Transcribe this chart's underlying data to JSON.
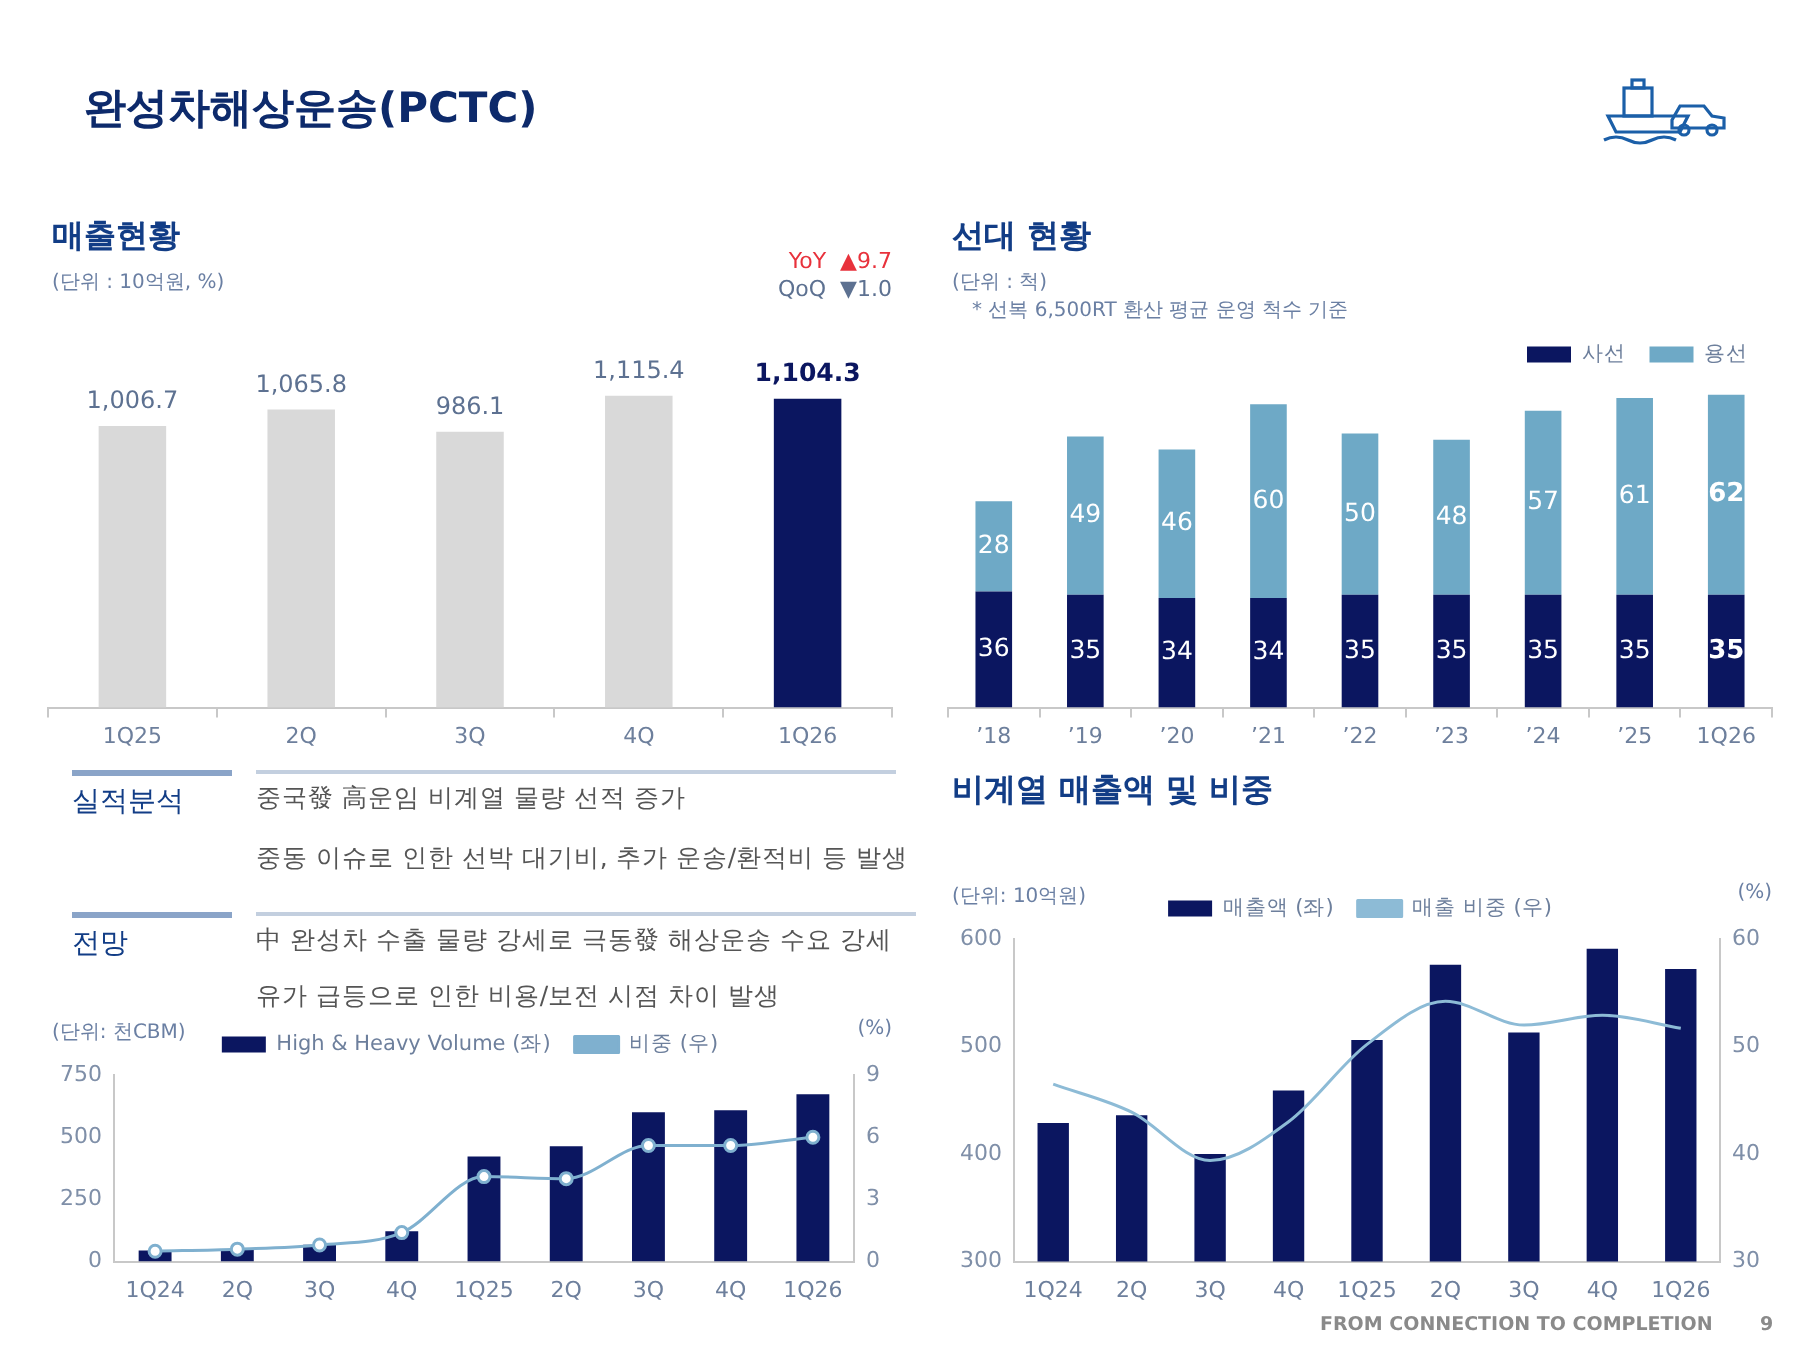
{
  "chart_data": [
    {
      "type": "other",
      "title": "완성차해상운송(PCTC)",
      "annotations": [
        "실적분석",
        "중국發  高운임 비계열 물량 선적 증가",
        "중동 이슈로 인한 선박 대기비, 추가 운송/환적비 등 발생",
        "전망",
        "中 완성차 수출 물량 강세로 극동發 해상운송 수요 강세",
        "유가 급등으로 인한 비용/보전 시점 차이 발생",
        "FROM CONNECTION TO COMPLETION",
        "9"
      ]
    },
    {
      "type": "bar",
      "title": "매출현황",
      "subtitle": "(단위 : 10억원, %)",
      "categories": [
        "1Q25",
        "2Q",
        "3Q",
        "4Q",
        "1Q26"
      ],
      "values": [
        1006.7,
        1065.8,
        986.1,
        1115.4,
        1104.3
      ],
      "colors": [
        "#d9d9d9",
        "#d9d9d9",
        "#d9d9d9",
        "#d9d9d9",
        "#0b1660"
      ],
      "value_labels": [
        "1,006.7",
        "1,065.8",
        "986.1",
        "1,115.4",
        "1,104.3"
      ],
      "annotations": [
        "YoY  ▲9.7",
        "QoQ  ▼1.0"
      ]
    },
    {
      "type": "bar",
      "title": "선대 현황",
      "subtitle": "(단위 : 척)",
      "annotations": [
        "* 선복 6,500RT 환산 평균 운영 척수 기준"
      ],
      "stacked": true,
      "data_labels": true,
      "legend": "top right",
      "categories": [
        "’18",
        "’19",
        "’20",
        "’21",
        "’22",
        "’23",
        "’24",
        "’25",
        "1Q26"
      ],
      "series": [
        {
          "name": "사선",
          "color": "#0b1660",
          "values": [
            36,
            35,
            34,
            34,
            35,
            35,
            35,
            35,
            35
          ]
        },
        {
          "name": "용선",
          "color": "#6ea9c6",
          "values": [
            28,
            49,
            46,
            60,
            50,
            48,
            57,
            61,
            62
          ]
        }
      ]
    },
    {
      "type": "bar",
      "title": "비계열 매출액 및 비중",
      "ylabel": "(단위: 10억원)",
      "y2label": "(%)",
      "legend": "top",
      "categories": [
        "1Q24",
        "2Q",
        "3Q",
        "4Q",
        "1Q25",
        "2Q",
        "3Q",
        "4Q",
        "1Q26"
      ],
      "ylim": [
        300,
        600
      ],
      "yticks": [
        300,
        400,
        500,
        600
      ],
      "y2lim": [
        30,
        60
      ],
      "y2ticks": [
        30,
        40,
        50,
        60
      ],
      "marker": "none",
      "series": [
        {
          "name": "매출액 (좌)",
          "color": "#0b1660",
          "values": [
            429,
            436,
            400,
            459,
            506,
            576,
            513,
            591,
            572
          ]
        },
        {
          "name": "매출 비중 (우)",
          "type": "line",
          "axis": "y2",
          "color": "#8dbbd6",
          "values": [
            46.5,
            43.9,
            39.4,
            43.0,
            50.2,
            54.2,
            52.0,
            52.9,
            51.7
          ]
        }
      ]
    },
    {
      "type": "bar",
      "ylabel": "(단위: 천CBM)",
      "y2label": "(%)",
      "legend": "top",
      "categories": [
        "1Q24",
        "2Q",
        "3Q",
        "4Q",
        "1Q25",
        "2Q",
        "3Q",
        "4Q",
        "1Q26"
      ],
      "ylim": [
        0,
        750
      ],
      "yticks": [
        0,
        250,
        500,
        750
      ],
      "y2lim": [
        0,
        9
      ],
      "y2ticks": [
        0,
        3,
        6,
        9
      ],
      "marker": "circle",
      "series": [
        {
          "name": "High & Heavy Volume (좌)",
          "color": "#0b1660",
          "values": [
            45,
            51,
            68,
            122,
            422,
            464,
            600,
            608,
            673
          ]
        },
        {
          "name": "비중 (우)",
          "type": "line",
          "axis": "y2",
          "color": "#7fb0cf",
          "values": [
            0.5,
            0.6,
            0.8,
            1.4,
            4.1,
            4.0,
            5.6,
            5.6,
            6.0
          ]
        }
      ]
    }
  ]
}
